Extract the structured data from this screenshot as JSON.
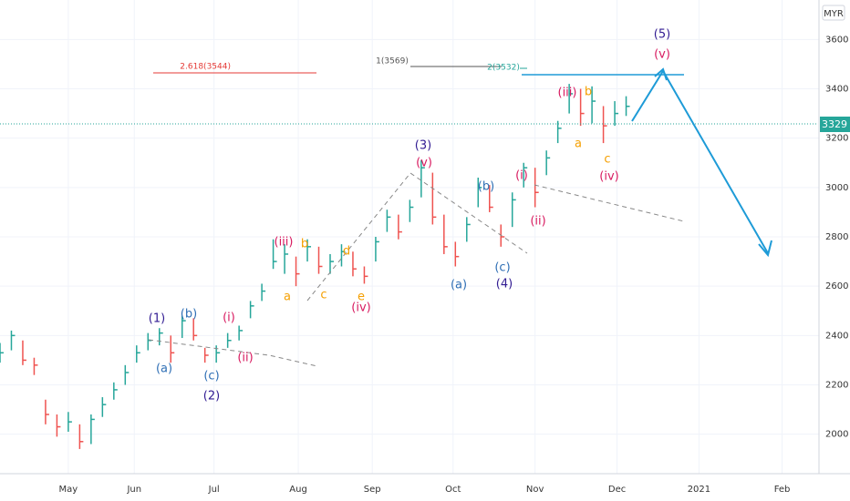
{
  "chart_data": {
    "type": "hlc",
    "currency": "MYR",
    "high": [
      2370,
      2420,
      2380,
      2310,
      2140,
      2080,
      2090,
      2040,
      2080,
      2150,
      2210,
      2280,
      2360,
      2410,
      2430,
      2400,
      2480,
      2470,
      2350,
      2360,
      2410,
      2440,
      2540,
      2610,
      2790,
      2770,
      2720,
      2790,
      2760,
      2730,
      2770,
      2740,
      2680,
      2800,
      2910,
      2890,
      2950,
      3110,
      3060,
      2890,
      2780,
      2880,
      3040,
      3010,
      2850,
      2980,
      3100,
      3080,
      3150,
      3270,
      3420,
      3400,
      3410,
      3330,
      3350,
      3370
    ],
    "low": [
      2290,
      2340,
      2280,
      2240,
      2040,
      1990,
      2010,
      1940,
      1960,
      2070,
      2140,
      2200,
      2290,
      2340,
      2360,
      2290,
      2390,
      2380,
      2290,
      2290,
      2350,
      2380,
      2470,
      2540,
      2670,
      2650,
      2600,
      2700,
      2650,
      2650,
      2680,
      2640,
      2610,
      2700,
      2820,
      2790,
      2860,
      2960,
      2850,
      2730,
      2680,
      2780,
      2920,
      2900,
      2760,
      2840,
      3000,
      2920,
      3050,
      3180,
      3300,
      3250,
      3260,
      3180,
      3250,
      3290
    ],
    "close": [
      2330,
      2400,
      2300,
      2280,
      2080,
      2030,
      2050,
      1970,
      2060,
      2120,
      2180,
      2250,
      2330,
      2380,
      2410,
      2330,
      2460,
      2400,
      2320,
      2330,
      2380,
      2420,
      2520,
      2580,
      2700,
      2730,
      2650,
      2760,
      2680,
      2700,
      2740,
      2670,
      2640,
      2780,
      2880,
      2820,
      2920,
      3080,
      2880,
      2760,
      2720,
      2850,
      3000,
      2920,
      2800,
      2950,
      3080,
      2980,
      3120,
      3240,
      3380,
      3300,
      3350,
      3250,
      3300,
      3329
    ],
    "up_color": "#26a69a",
    "down_color": "#ef5350",
    "ylim": [
      1840,
      3760
    ],
    "yticks": [
      2000,
      2200,
      2400,
      2600,
      2800,
      3000,
      3200,
      3400,
      3600
    ],
    "xlim": [
      0,
      71.7
    ],
    "xticks": [
      {
        "value": 6,
        "label": "May"
      },
      {
        "value": 11.8,
        "label": "Jun"
      },
      {
        "value": 18.8,
        "label": "Jul"
      },
      {
        "value": 26.2,
        "label": "Aug"
      },
      {
        "value": 32.7,
        "label": "Sep"
      },
      {
        "value": 39.8,
        "label": "Oct"
      },
      {
        "value": 47,
        "label": "Nov"
      },
      {
        "value": 54.2,
        "label": "Dec"
      },
      {
        "value": 61.4,
        "label": "2021"
      },
      {
        "value": 68.7,
        "label": "Feb"
      }
    ],
    "grid": true,
    "fib_labels": [
      "2.618(3544)",
      "1(3569)",
      "2(3532)"
    ],
    "annotations": [
      "(1)",
      "(a)",
      "(b)",
      "(c)",
      "(2)",
      "(i)",
      "(ii)",
      "(iii)",
      "a",
      "b",
      "c",
      "d",
      "e",
      "(iv)",
      "(3)",
      "(v)",
      "(a)",
      "(b)",
      "(c)",
      "(4)",
      "(i)",
      "(ii)",
      "(iii)",
      "b",
      "a",
      "c",
      "(iv)",
      "(5)",
      "(v)"
    ]
  }
}
